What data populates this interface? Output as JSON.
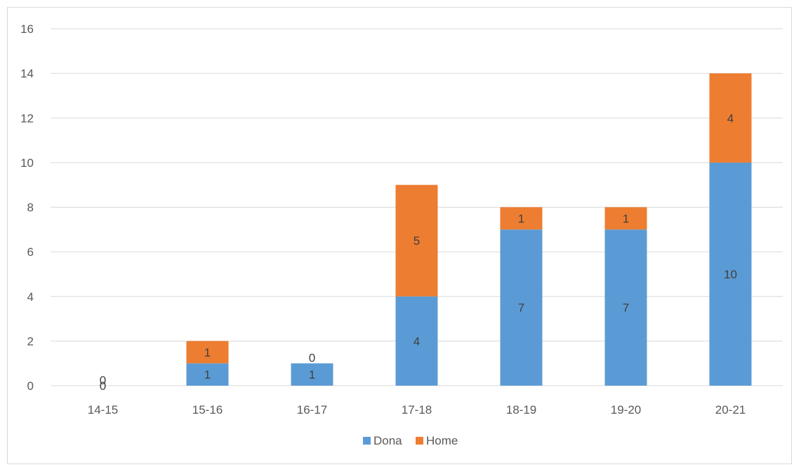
{
  "chart_data": {
    "type": "bar",
    "stacked": true,
    "categories": [
      "14-15",
      "15-16",
      "16-17",
      "17-18",
      "18-19",
      "19-20",
      "20-21"
    ],
    "series": [
      {
        "name": "Dona",
        "values": [
          0,
          1,
          1,
          4,
          7,
          7,
          10
        ],
        "color": "#5b9bd5"
      },
      {
        "name": "Home",
        "values": [
          0,
          1,
          0,
          5,
          1,
          1,
          4
        ],
        "color": "#ed7d31"
      }
    ],
    "ylim": [
      0,
      16
    ],
    "yticks": [
      0,
      2,
      4,
      6,
      8,
      10,
      12,
      14,
      16
    ],
    "grid": true,
    "legend": "bottom",
    "data_labels": true
  }
}
